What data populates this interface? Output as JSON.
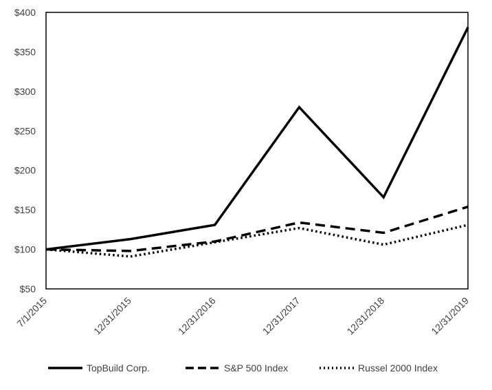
{
  "chart_data": {
    "type": "line",
    "categories": [
      "7/1/2015",
      "12/31/2015",
      "12/31/2016",
      "12/31/2017",
      "12/31/2018",
      "12/31/2019"
    ],
    "series": [
      {
        "name": "TopBuild Corp.",
        "values": [
          100,
          113,
          131,
          280,
          166,
          381
        ],
        "style": "solid"
      },
      {
        "name": "S&P 500 Index",
        "values": [
          100,
          98,
          110,
          134,
          121,
          154
        ],
        "style": "dashed"
      },
      {
        "name": "Russel 2000 Index",
        "values": [
          100,
          91,
          109,
          127,
          106,
          131
        ],
        "style": "dotted"
      }
    ],
    "ylim": [
      50,
      400
    ],
    "yticks": [
      "$50",
      "$100",
      "$150",
      "$200",
      "$250",
      "$300",
      "$350",
      "$400"
    ],
    "ytick_values": [
      50,
      100,
      150,
      200,
      250,
      300,
      350,
      400
    ],
    "grid": false,
    "legend_position": "bottom",
    "line_color": "#000000"
  }
}
